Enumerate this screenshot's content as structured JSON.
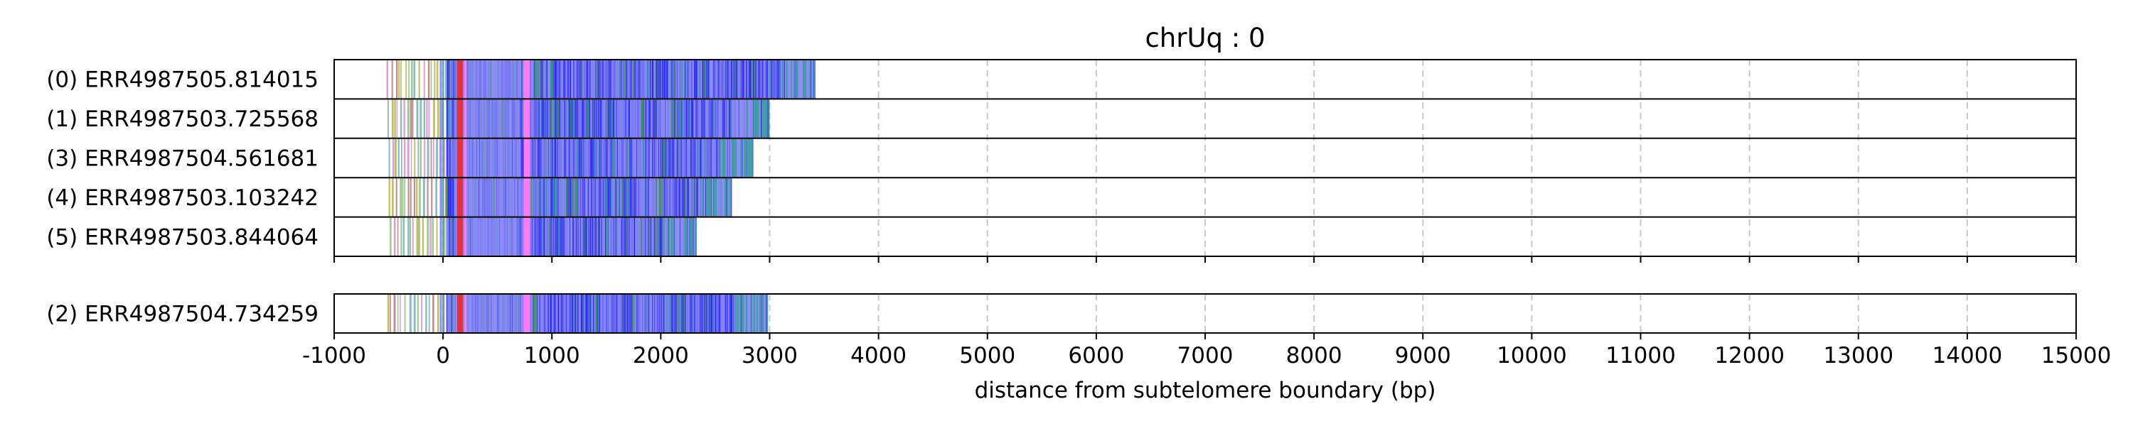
{
  "chart_data": {
    "type": "bar",
    "title": "chrUq : 0",
    "xlabel": "distance from subtelomere boundary (bp)",
    "ylabel": "",
    "xlim": [
      -1000,
      15000
    ],
    "xticks": [
      "-1000",
      "0",
      "1000",
      "2000",
      "3000",
      "4000",
      "5000",
      "6000",
      "7000",
      "8000",
      "9000",
      "10000",
      "11000",
      "12000",
      "13000",
      "14000",
      "15000"
    ],
    "grid": "x-dashed",
    "panels": [
      {
        "rows": [
          {
            "label": "(0) ERR4987505.814015",
            "read_start": -520,
            "read_end": 3420
          },
          {
            "label": "(1) ERR4987503.725568",
            "read_start": -510,
            "read_end": 2990
          },
          {
            "label": "(3) ERR4987504.561681",
            "read_start": -500,
            "read_end": 2850
          },
          {
            "label": "(4) ERR4987503.103242",
            "read_start": -500,
            "read_end": 2650
          },
          {
            "label": "(5) ERR4987503.844064",
            "read_start": -490,
            "read_end": 2320
          }
        ]
      },
      {
        "rows": [
          {
            "label": "(2) ERR4987504.734259",
            "read_start": -510,
            "read_end": 2980
          }
        ]
      }
    ],
    "colors": {
      "main": "#2323f5",
      "light": "#8f8ff5",
      "magenta": "#ff7af5",
      "red": "#e8303a",
      "green": "#3d9e3d",
      "teal": "#40a0a0",
      "sparse": [
        "#d9a0d9",
        "#a0c890",
        "#c0c060",
        "#88bbbb",
        "#c09090"
      ]
    }
  }
}
